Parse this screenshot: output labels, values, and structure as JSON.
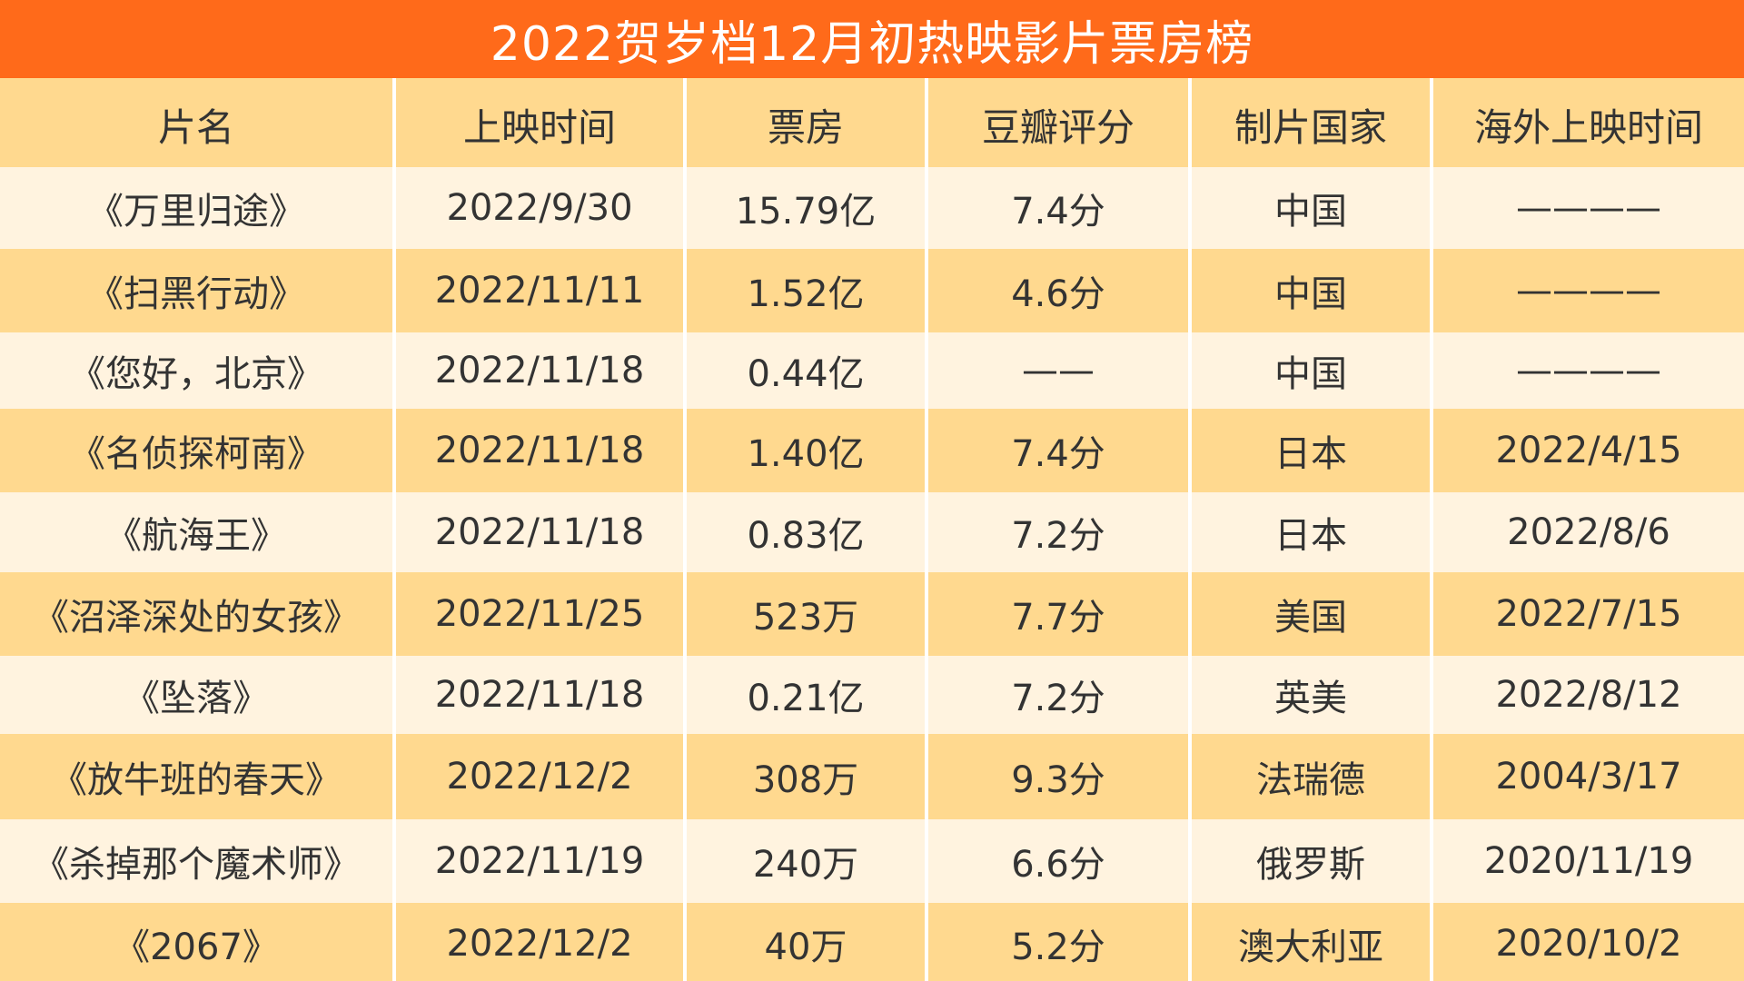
{
  "title": "2022贺岁档12月初热映影片票房榜",
  "columns": [
    "片名",
    "上映时间",
    "票房",
    "豆瓣评分",
    "制片国家",
    "海外上映时间"
  ],
  "rows": [
    [
      "《万里归途》",
      "2022/9/30",
      "15.79亿",
      "7.4分",
      "中国",
      "————"
    ],
    [
      "《扫黑行动》",
      "2022/11/11",
      "1.52亿",
      "4.6分",
      "中国",
      "————"
    ],
    [
      "《您好，北京》",
      "2022/11/18",
      "0.44亿",
      "——",
      "中国",
      "————"
    ],
    [
      "《名侦探柯南》",
      "2022/11/18",
      "1.40亿",
      "7.4分",
      "日本",
      "2022/4/15"
    ],
    [
      "《航海王》",
      "2022/11/18",
      "0.83亿",
      "7.2分",
      "日本",
      "2022/8/6"
    ],
    [
      "《沼泽深处的女孩》",
      "2022/11/25",
      "523万",
      "7.7分",
      "美国",
      "2022/7/15"
    ],
    [
      "《坠落》",
      "2022/11/18",
      "0.21亿",
      "7.2分",
      "英美",
      "2022/8/12"
    ],
    [
      "《放牛班的春天》",
      "2022/12/2",
      "308万",
      "9.3分",
      "法瑞德",
      "2004/3/17"
    ],
    [
      "《杀掉那个魔术师》",
      "2022/11/19",
      "240万",
      "6.6分",
      "俄罗斯",
      "2020/11/19"
    ],
    [
      "《2067》",
      "2022/12/2",
      "40万",
      "5.2分",
      "澳大利亚",
      "2020/10/2"
    ]
  ],
  "colors": {
    "title_bg": "#ff6a1a",
    "header_bg": "#ffd98f",
    "row_light": "#fff3df",
    "row_dark": "#ffd98f",
    "text": "#333333"
  }
}
